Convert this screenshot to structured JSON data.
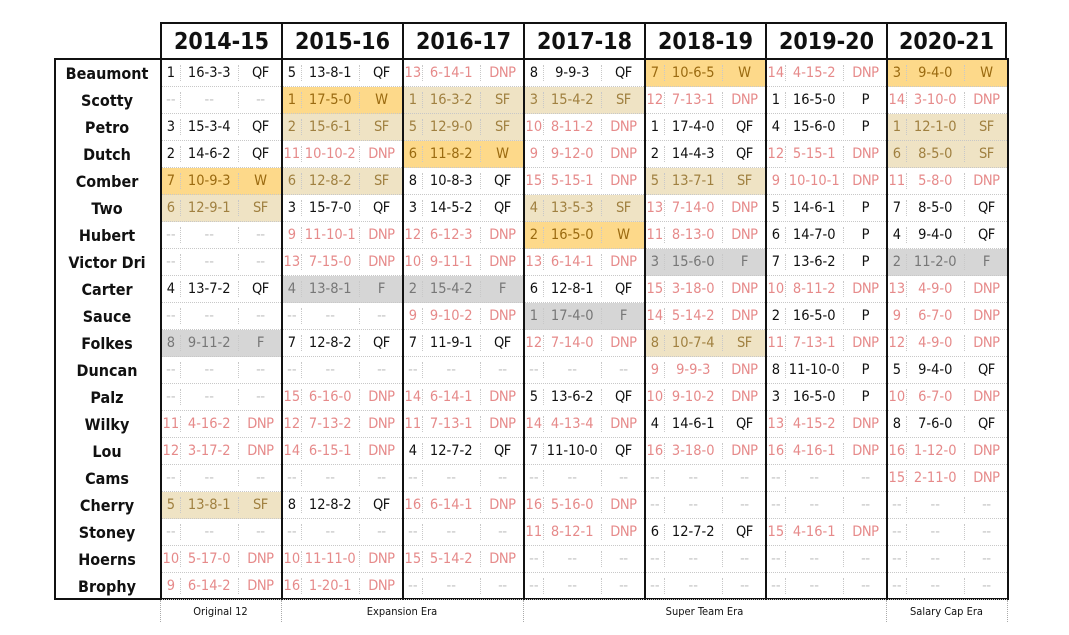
{
  "seasons": [
    "2014-15",
    "2015-16",
    "2016-17",
    "2017-18",
    "2018-19",
    "2019-20",
    "2020-21"
  ],
  "eras": [
    "Original 12",
    "Expansion Era",
    "Super Team Era",
    "Salary Cap Era"
  ],
  "colors": {
    "win": "#fdd98a",
    "semifinal": "#efe3c4",
    "final": "#d6d6d6",
    "dnp_text": "#e68a8a",
    "na_text": "#c0c0c0"
  },
  "rows": [
    {
      "name": "Beaumont",
      "seasons": [
        [
          "1",
          "16-3-3",
          "QF"
        ],
        [
          "5",
          "13-8-1",
          "QF"
        ],
        [
          "13",
          "6-14-1",
          "DNP"
        ],
        [
          "8",
          "9-9-3",
          "QF"
        ],
        [
          "7",
          "10-6-5",
          "W"
        ],
        [
          "14",
          "4-15-2",
          "DNP"
        ],
        [
          "3",
          "9-4-0",
          "W"
        ]
      ]
    },
    {
      "name": "Scotty",
      "seasons": [
        [
          "--",
          "--",
          "--"
        ],
        [
          "1",
          "17-5-0",
          "W"
        ],
        [
          "1",
          "16-3-2",
          "SF"
        ],
        [
          "3",
          "15-4-2",
          "SF"
        ],
        [
          "12",
          "7-13-1",
          "DNP"
        ],
        [
          "1",
          "16-5-0",
          "P"
        ],
        [
          "14",
          "3-10-0",
          "DNP"
        ]
      ]
    },
    {
      "name": "Petro",
      "seasons": [
        [
          "3",
          "15-3-4",
          "QF"
        ],
        [
          "2",
          "15-6-1",
          "SF"
        ],
        [
          "5",
          "12-9-0",
          "SF"
        ],
        [
          "10",
          "8-11-2",
          "DNP"
        ],
        [
          "1",
          "17-4-0",
          "QF"
        ],
        [
          "4",
          "15-6-0",
          "P"
        ],
        [
          "1",
          "12-1-0",
          "SF"
        ]
      ]
    },
    {
      "name": "Dutch",
      "seasons": [
        [
          "2",
          "14-6-2",
          "QF"
        ],
        [
          "11",
          "10-10-2",
          "DNP"
        ],
        [
          "6",
          "11-8-2",
          "W"
        ],
        [
          "9",
          "9-12-0",
          "DNP"
        ],
        [
          "2",
          "14-4-3",
          "QF"
        ],
        [
          "12",
          "5-15-1",
          "DNP"
        ],
        [
          "6",
          "8-5-0",
          "SF"
        ]
      ]
    },
    {
      "name": "Comber",
      "seasons": [
        [
          "7",
          "10-9-3",
          "W"
        ],
        [
          "6",
          "12-8-2",
          "SF"
        ],
        [
          "8",
          "10-8-3",
          "QF"
        ],
        [
          "15",
          "5-15-1",
          "DNP"
        ],
        [
          "5",
          "13-7-1",
          "SF"
        ],
        [
          "9",
          "10-10-1",
          "DNP"
        ],
        [
          "11",
          "5-8-0",
          "DNP"
        ]
      ]
    },
    {
      "name": "Two",
      "seasons": [
        [
          "6",
          "12-9-1",
          "SF"
        ],
        [
          "3",
          "15-7-0",
          "QF"
        ],
        [
          "3",
          "14-5-2",
          "QF"
        ],
        [
          "4",
          "13-5-3",
          "SF"
        ],
        [
          "13",
          "7-14-0",
          "DNP"
        ],
        [
          "5",
          "14-6-1",
          "P"
        ],
        [
          "7",
          "8-5-0",
          "QF"
        ]
      ]
    },
    {
      "name": "Hubert",
      "seasons": [
        [
          "--",
          "--",
          "--"
        ],
        [
          "9",
          "11-10-1",
          "DNP"
        ],
        [
          "12",
          "6-12-3",
          "DNP"
        ],
        [
          "2",
          "16-5-0",
          "W"
        ],
        [
          "11",
          "8-13-0",
          "DNP"
        ],
        [
          "6",
          "14-7-0",
          "P"
        ],
        [
          "4",
          "9-4-0",
          "QF"
        ]
      ]
    },
    {
      "name": "Victor Dri",
      "seasons": [
        [
          "--",
          "--",
          "--"
        ],
        [
          "13",
          "7-15-0",
          "DNP"
        ],
        [
          "10",
          "9-11-1",
          "DNP"
        ],
        [
          "13",
          "6-14-1",
          "DNP"
        ],
        [
          "3",
          "15-6-0",
          "F"
        ],
        [
          "7",
          "13-6-2",
          "P"
        ],
        [
          "2",
          "11-2-0",
          "F"
        ]
      ]
    },
    {
      "name": "Carter",
      "seasons": [
        [
          "4",
          "13-7-2",
          "QF"
        ],
        [
          "4",
          "13-8-1",
          "F"
        ],
        [
          "2",
          "15-4-2",
          "F"
        ],
        [
          "6",
          "12-8-1",
          "QF"
        ],
        [
          "15",
          "3-18-0",
          "DNP"
        ],
        [
          "10",
          "8-11-2",
          "DNP"
        ],
        [
          "13",
          "4-9-0",
          "DNP"
        ]
      ]
    },
    {
      "name": "Sauce",
      "seasons": [
        [
          "--",
          "--",
          "--"
        ],
        [
          "--",
          "--",
          "--"
        ],
        [
          "9",
          "9-10-2",
          "DNP"
        ],
        [
          "1",
          "17-4-0",
          "F"
        ],
        [
          "14",
          "5-14-2",
          "DNP"
        ],
        [
          "2",
          "16-5-0",
          "P"
        ],
        [
          "9",
          "6-7-0",
          "DNP"
        ]
      ]
    },
    {
      "name": "Folkes",
      "seasons": [
        [
          "8",
          "9-11-2",
          "F"
        ],
        [
          "7",
          "12-8-2",
          "QF"
        ],
        [
          "7",
          "11-9-1",
          "QF"
        ],
        [
          "12",
          "7-14-0",
          "DNP"
        ],
        [
          "8",
          "10-7-4",
          "SF"
        ],
        [
          "11",
          "7-13-1",
          "DNP"
        ],
        [
          "12",
          "4-9-0",
          "DNP"
        ]
      ]
    },
    {
      "name": "Duncan",
      "seasons": [
        [
          "--",
          "--",
          "--"
        ],
        [
          "--",
          "--",
          "--"
        ],
        [
          "--",
          "--",
          "--"
        ],
        [
          "--",
          "--",
          "--"
        ],
        [
          "9",
          "9-9-3",
          "DNP"
        ],
        [
          "8",
          "11-10-0",
          "P"
        ],
        [
          "5",
          "9-4-0",
          "QF"
        ]
      ]
    },
    {
      "name": "Palz",
      "seasons": [
        [
          "--",
          "--",
          "--"
        ],
        [
          "15",
          "6-16-0",
          "DNP"
        ],
        [
          "14",
          "6-14-1",
          "DNP"
        ],
        [
          "5",
          "13-6-2",
          "QF"
        ],
        [
          "10",
          "9-10-2",
          "DNP"
        ],
        [
          "3",
          "16-5-0",
          "P"
        ],
        [
          "10",
          "6-7-0",
          "DNP"
        ]
      ]
    },
    {
      "name": "Wilky",
      "seasons": [
        [
          "11",
          "4-16-2",
          "DNP"
        ],
        [
          "12",
          "7-13-2",
          "DNP"
        ],
        [
          "11",
          "7-13-1",
          "DNP"
        ],
        [
          "14",
          "4-13-4",
          "DNP"
        ],
        [
          "4",
          "14-6-1",
          "QF"
        ],
        [
          "13",
          "4-15-2",
          "DNP"
        ],
        [
          "8",
          "7-6-0",
          "QF"
        ]
      ]
    },
    {
      "name": "Lou",
      "seasons": [
        [
          "12",
          "3-17-2",
          "DNP"
        ],
        [
          "14",
          "6-15-1",
          "DNP"
        ],
        [
          "4",
          "12-7-2",
          "QF"
        ],
        [
          "7",
          "11-10-0",
          "QF"
        ],
        [
          "16",
          "3-18-0",
          "DNP"
        ],
        [
          "16",
          "4-16-1",
          "DNP"
        ],
        [
          "16",
          "1-12-0",
          "DNP"
        ]
      ]
    },
    {
      "name": "Cams",
      "seasons": [
        [
          "--",
          "--",
          "--"
        ],
        [
          "--",
          "--",
          "--"
        ],
        [
          "--",
          "--",
          "--"
        ],
        [
          "--",
          "--",
          "--"
        ],
        [
          "--",
          "--",
          "--"
        ],
        [
          "--",
          "--",
          "--"
        ],
        [
          "15",
          "2-11-0",
          "DNP"
        ]
      ]
    },
    {
      "name": "Cherry",
      "seasons": [
        [
          "5",
          "13-8-1",
          "SF"
        ],
        [
          "8",
          "12-8-2",
          "QF"
        ],
        [
          "16",
          "6-14-1",
          "DNP"
        ],
        [
          "16",
          "5-16-0",
          "DNP"
        ],
        [
          "--",
          "--",
          "--"
        ],
        [
          "--",
          "--",
          "--"
        ],
        [
          "--",
          "--",
          "--"
        ]
      ]
    },
    {
      "name": "Stoney",
      "seasons": [
        [
          "--",
          "--",
          "--"
        ],
        [
          "--",
          "--",
          "--"
        ],
        [
          "--",
          "--",
          "--"
        ],
        [
          "11",
          "8-12-1",
          "DNP"
        ],
        [
          "6",
          "12-7-2",
          "QF"
        ],
        [
          "15",
          "4-16-1",
          "DNP"
        ],
        [
          "--",
          "--",
          "--"
        ]
      ]
    },
    {
      "name": "Hoerns",
      "seasons": [
        [
          "10",
          "5-17-0",
          "DNP"
        ],
        [
          "10",
          "11-11-0",
          "DNP"
        ],
        [
          "15",
          "5-14-2",
          "DNP"
        ],
        [
          "--",
          "--",
          "--"
        ],
        [
          "--",
          "--",
          "--"
        ],
        [
          "--",
          "--",
          "--"
        ],
        [
          "--",
          "--",
          "--"
        ]
      ]
    },
    {
      "name": "Brophy",
      "seasons": [
        [
          "9",
          "6-14-2",
          "DNP"
        ],
        [
          "16",
          "1-20-1",
          "DNP"
        ],
        [
          "--",
          "--",
          "--"
        ],
        [
          "--",
          "--",
          "--"
        ],
        [
          "--",
          "--",
          "--"
        ],
        [
          "--",
          "--",
          "--"
        ],
        [
          "--",
          "--",
          "--"
        ]
      ]
    }
  ]
}
